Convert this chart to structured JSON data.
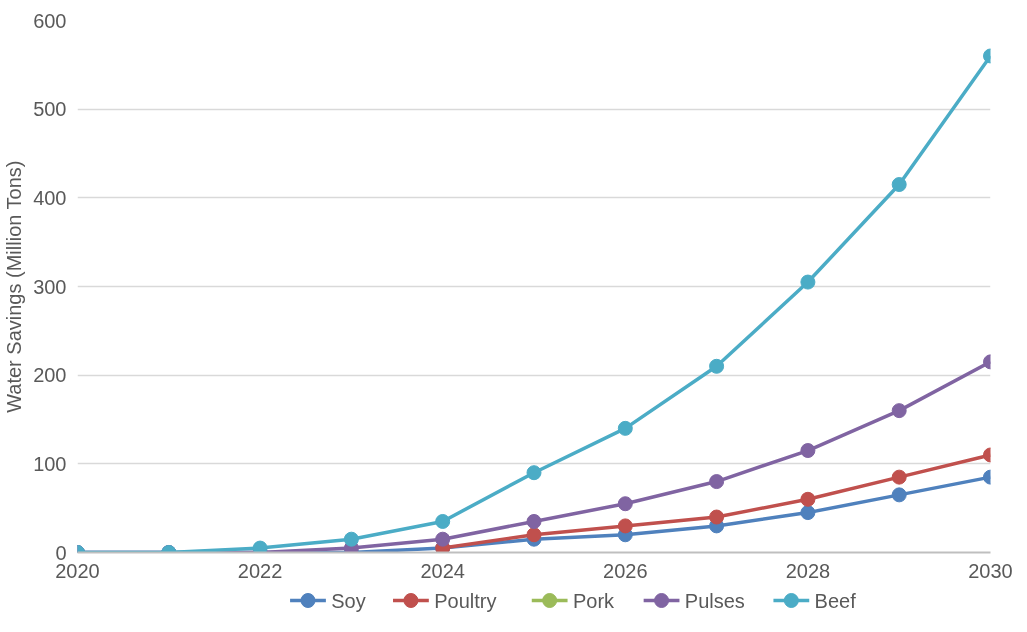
{
  "chart_data": {
    "type": "line",
    "ylabel": "Water Savings (Million Tons)",
    "x": [
      2020,
      2021,
      2022,
      2023,
      2024,
      2025,
      2026,
      2027,
      2028,
      2029,
      2030
    ],
    "series": [
      {
        "name": "Soy",
        "color": "#4f81bd",
        "values": [
          0,
          0,
          0,
          0,
          5,
          15,
          20,
          30,
          45,
          65,
          85
        ]
      },
      {
        "name": "Poultry",
        "color": "#c0504d",
        "values": [
          null,
          null,
          null,
          null,
          5,
          20,
          30,
          40,
          60,
          85,
          110
        ]
      },
      {
        "name": "Pork",
        "color": "#9bbb59",
        "values": [
          null,
          null,
          null,
          null,
          null,
          null,
          null,
          null,
          null,
          null,
          null
        ]
      },
      {
        "name": "Pulses",
        "color": "#8064a2",
        "values": [
          0,
          0,
          0,
          5,
          15,
          35,
          55,
          80,
          115,
          160,
          215
        ]
      },
      {
        "name": "Beef",
        "color": "#4bacc6",
        "values": [
          0,
          0,
          5,
          15,
          35,
          90,
          140,
          210,
          305,
          415,
          560
        ]
      }
    ],
    "xlim": [
      2020,
      2030
    ],
    "xticks": [
      2020,
      2022,
      2024,
      2026,
      2028,
      2030
    ],
    "ylim": [
      0,
      600
    ],
    "yticks": [
      0,
      100,
      200,
      300,
      400,
      500,
      600
    ],
    "grid": "y",
    "legend": "bottom",
    "marker": "circle",
    "line_style": "solid"
  }
}
